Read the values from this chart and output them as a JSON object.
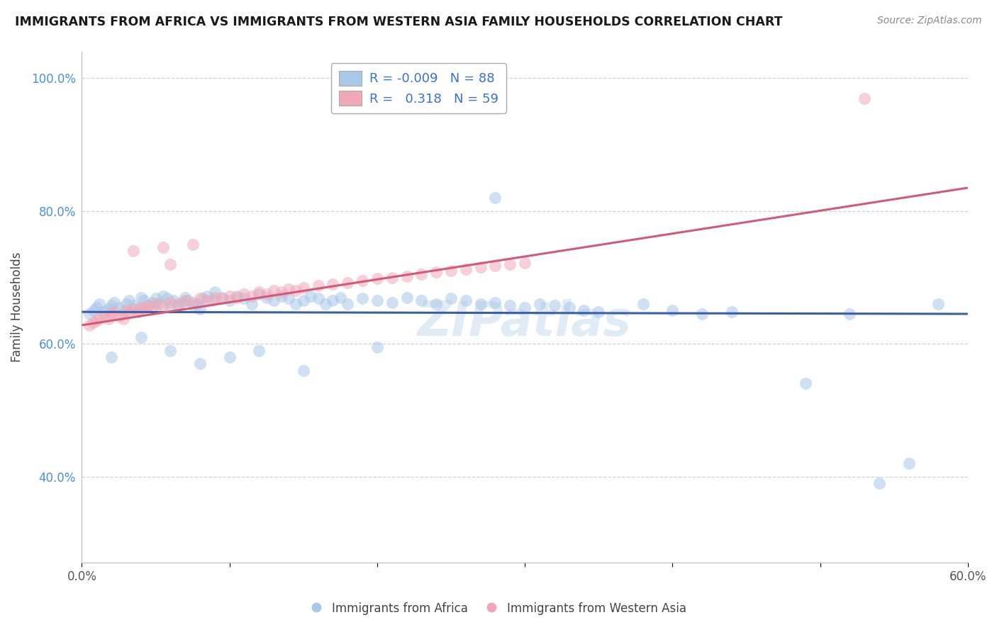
{
  "title": "IMMIGRANTS FROM AFRICA VS IMMIGRANTS FROM WESTERN ASIA FAMILY HOUSEHOLDS CORRELATION CHART",
  "source": "Source: ZipAtlas.com",
  "ylabel": "Family Households",
  "yticks": [
    "40.0%",
    "60.0%",
    "80.0%",
    "100.0%"
  ],
  "ytick_vals": [
    0.4,
    0.6,
    0.8,
    1.0
  ],
  "xlim": [
    0.0,
    0.6
  ],
  "ylim": [
    0.27,
    1.04
  ],
  "legend_africa_R": "-0.009",
  "legend_africa_N": "88",
  "legend_western_R": "0.318",
  "legend_western_N": "59",
  "color_africa": "#a8c8e8",
  "color_western": "#f0a8b8",
  "trendline_africa_color": "#3a5fa8",
  "trendline_western_color": "#d45878",
  "watermark": "ZIPatlas",
  "africa_x": [
    0.005,
    0.008,
    0.01,
    0.012,
    0.015,
    0.018,
    0.02,
    0.022,
    0.025,
    0.028,
    0.03,
    0.032,
    0.035,
    0.038,
    0.04,
    0.042,
    0.045,
    0.048,
    0.05,
    0.052,
    0.055,
    0.058,
    0.06,
    0.062,
    0.065,
    0.068,
    0.07,
    0.072,
    0.075,
    0.078,
    0.08,
    0.082,
    0.085,
    0.088,
    0.09,
    0.095,
    0.1,
    0.105,
    0.11,
    0.115,
    0.12,
    0.125,
    0.13,
    0.135,
    0.14,
    0.145,
    0.15,
    0.155,
    0.16,
    0.165,
    0.17,
    0.175,
    0.18,
    0.19,
    0.2,
    0.21,
    0.22,
    0.23,
    0.24,
    0.25,
    0.26,
    0.27,
    0.28,
    0.29,
    0.3,
    0.31,
    0.32,
    0.33,
    0.34,
    0.35,
    0.28,
    0.38,
    0.4,
    0.42,
    0.44,
    0.49,
    0.52,
    0.54,
    0.56,
    0.58,
    0.02,
    0.04,
    0.06,
    0.08,
    0.1,
    0.12,
    0.15,
    0.2
  ],
  "africa_y": [
    0.645,
    0.65,
    0.655,
    0.66,
    0.648,
    0.652,
    0.658,
    0.662,
    0.655,
    0.648,
    0.66,
    0.665,
    0.658,
    0.652,
    0.67,
    0.665,
    0.658,
    0.662,
    0.668,
    0.66,
    0.672,
    0.668,
    0.655,
    0.665,
    0.658,
    0.662,
    0.67,
    0.665,
    0.658,
    0.66,
    0.652,
    0.668,
    0.672,
    0.665,
    0.678,
    0.67,
    0.665,
    0.672,
    0.668,
    0.66,
    0.675,
    0.67,
    0.665,
    0.672,
    0.668,
    0.66,
    0.665,
    0.672,
    0.668,
    0.66,
    0.665,
    0.67,
    0.66,
    0.668,
    0.665,
    0.662,
    0.67,
    0.665,
    0.66,
    0.668,
    0.665,
    0.66,
    0.662,
    0.658,
    0.655,
    0.66,
    0.658,
    0.655,
    0.65,
    0.648,
    0.82,
    0.66,
    0.65,
    0.645,
    0.648,
    0.54,
    0.645,
    0.39,
    0.42,
    0.66,
    0.58,
    0.61,
    0.59,
    0.57,
    0.58,
    0.59,
    0.56,
    0.595
  ],
  "western_x": [
    0.005,
    0.008,
    0.01,
    0.012,
    0.015,
    0.018,
    0.02,
    0.022,
    0.025,
    0.028,
    0.03,
    0.032,
    0.035,
    0.038,
    0.04,
    0.042,
    0.045,
    0.048,
    0.05,
    0.055,
    0.06,
    0.065,
    0.07,
    0.075,
    0.08,
    0.085,
    0.09,
    0.095,
    0.1,
    0.105,
    0.11,
    0.115,
    0.12,
    0.125,
    0.13,
    0.135,
    0.14,
    0.145,
    0.15,
    0.16,
    0.17,
    0.18,
    0.19,
    0.2,
    0.21,
    0.22,
    0.23,
    0.24,
    0.25,
    0.26,
    0.27,
    0.28,
    0.29,
    0.3,
    0.035,
    0.055,
    0.075,
    0.53,
    0.06
  ],
  "western_y": [
    0.628,
    0.632,
    0.635,
    0.638,
    0.642,
    0.638,
    0.645,
    0.648,
    0.642,
    0.638,
    0.65,
    0.648,
    0.652,
    0.648,
    0.655,
    0.652,
    0.658,
    0.655,
    0.66,
    0.658,
    0.662,
    0.66,
    0.665,
    0.662,
    0.668,
    0.665,
    0.67,
    0.668,
    0.672,
    0.67,
    0.675,
    0.672,
    0.678,
    0.675,
    0.68,
    0.678,
    0.682,
    0.68,
    0.685,
    0.688,
    0.69,
    0.692,
    0.695,
    0.698,
    0.7,
    0.702,
    0.705,
    0.708,
    0.71,
    0.712,
    0.715,
    0.718,
    0.72,
    0.722,
    0.74,
    0.745,
    0.75,
    0.97,
    0.72
  ],
  "africa_trendline_y_intercept": 0.648,
  "africa_trendline_slope": -0.005,
  "western_trendline_y_intercept": 0.628,
  "western_trendline_slope": 0.345
}
